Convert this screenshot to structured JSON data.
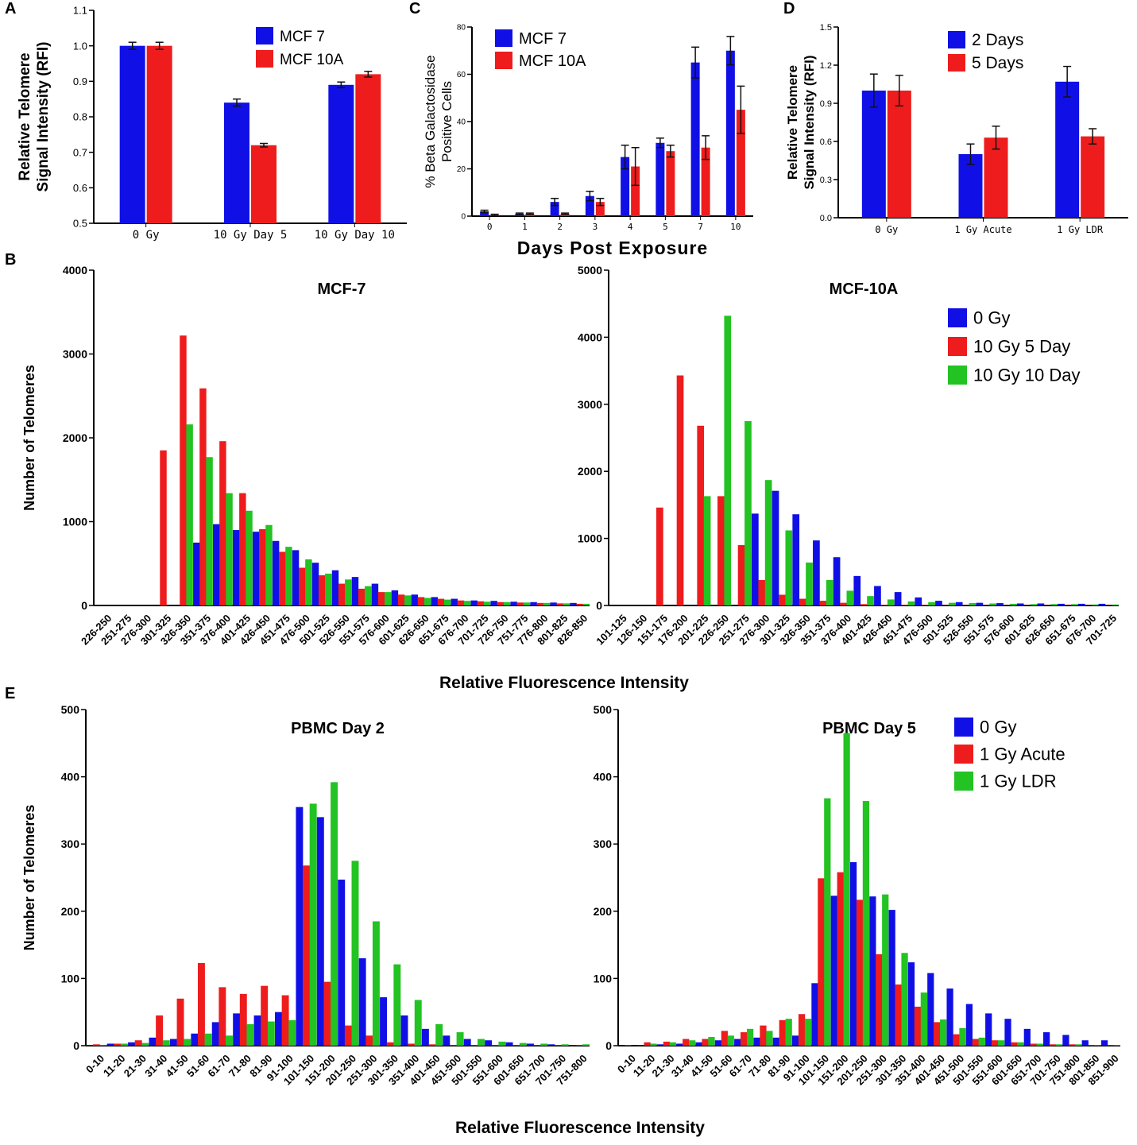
{
  "panel_letters": {
    "A": "A",
    "B": "B",
    "C": "C",
    "D": "D",
    "E": "E"
  },
  "shared_labels": {
    "b_xlabel": "Relative Fluorescence Intensity",
    "e_xlabel": "Relative Fluorescence Intensity"
  },
  "colors": {
    "blue": "#1010e6",
    "red": "#ee1c1c",
    "green": "#22c322"
  },
  "chart_data": [
    {
      "id": "A",
      "type": "bar",
      "title": "",
      "ylabel": "Relative Telomere Signal Intensity (RFI)",
      "xlabel": "",
      "ylim": [
        0.5,
        1.1
      ],
      "yticks": [
        "0.5",
        "0.6",
        "0.7",
        "0.8",
        "0.9",
        "1.0",
        "1.1"
      ],
      "categories": [
        "0 Gy",
        "10 Gy Day 5",
        "10 Gy Day 10"
      ],
      "series": [
        {
          "name": "MCF 7",
          "color": "#1010e6",
          "values": [
            1.0,
            0.84,
            0.89
          ],
          "errors": [
            0.01,
            0.01,
            0.008
          ]
        },
        {
          "name": "MCF 10A",
          "color": "#ee1c1c",
          "values": [
            1.0,
            0.72,
            0.92
          ],
          "errors": [
            0.01,
            0.005,
            0.008
          ]
        }
      ],
      "legend": "top-right"
    },
    {
      "id": "C",
      "type": "bar",
      "title": "",
      "ylabel": "% Beta Galactosidase Positive Cells",
      "xlabel": "Days Post Exposure",
      "ylim": [
        0,
        80
      ],
      "yticks": [
        "0",
        "20",
        "40",
        "60",
        "80"
      ],
      "categories": [
        "0",
        "1",
        "2",
        "3",
        "4",
        "5",
        "7",
        "10"
      ],
      "series": [
        {
          "name": "MCF 7",
          "color": "#1010e6",
          "values": [
            2,
            1,
            6,
            8.5,
            25,
            31,
            65,
            70
          ],
          "errors": [
            0.5,
            0.3,
            1.5,
            2,
            5,
            2,
            6.5,
            6
          ]
        },
        {
          "name": "MCF 10A",
          "color": "#ee1c1c",
          "values": [
            0.5,
            1,
            1,
            6,
            21,
            27.5,
            29,
            45
          ],
          "errors": [
            0.3,
            0.3,
            0.3,
            1.5,
            8,
            2.5,
            5,
            10
          ]
        }
      ],
      "legend": "top-left"
    },
    {
      "id": "D",
      "type": "bar",
      "title": "",
      "ylabel": "Relative Telomere Signal Intensity (RFI)",
      "xlabel": "",
      "ylim": [
        0,
        1.5
      ],
      "yticks": [
        "0.0",
        "0.3",
        "0.6",
        "0.9",
        "1.2",
        "1.5"
      ],
      "categories": [
        "0 Gy",
        "1 Gy Acute",
        "1 Gy LDR"
      ],
      "series": [
        {
          "name": "2 Days",
          "color": "#1010e6",
          "values": [
            1.0,
            0.5,
            1.07
          ],
          "errors": [
            0.13,
            0.08,
            0.12
          ]
        },
        {
          "name": "5 Days",
          "color": "#ee1c1c",
          "values": [
            1.0,
            0.63,
            0.64
          ],
          "errors": [
            0.12,
            0.09,
            0.06
          ]
        }
      ],
      "legend": "top-right"
    },
    {
      "id": "B1",
      "type": "bar",
      "title": "MCF-7",
      "ylabel": "Number of Telomeres",
      "xlabel": "",
      "ylim": [
        0,
        4000
      ],
      "yticks": [
        "0",
        "1000",
        "2000",
        "3000",
        "4000"
      ],
      "categories": [
        "226-250",
        "251-275",
        "276-300",
        "301-325",
        "326-350",
        "351-375",
        "376-400",
        "401-425",
        "426-450",
        "451-475",
        "476-500",
        "501-525",
        "526-550",
        "551-575",
        "576-600",
        "601-625",
        "626-650",
        "651-675",
        "676-700",
        "701-725",
        "726-750",
        "751-775",
        "776-800",
        "801-825",
        "826-850"
      ],
      "series": [
        {
          "name": "0 Gy",
          "color": "#1010e6",
          "values": [
            0,
            0,
            0,
            0,
            0,
            750,
            970,
            900,
            880,
            770,
            660,
            510,
            420,
            340,
            260,
            180,
            130,
            100,
            80,
            60,
            55,
            45,
            40,
            35,
            30
          ]
        },
        {
          "name": "10 Gy 5 Day",
          "color": "#ee1c1c",
          "values": [
            0,
            0,
            0,
            1850,
            3220,
            2590,
            1960,
            1340,
            910,
            640,
            450,
            360,
            260,
            200,
            160,
            130,
            100,
            80,
            60,
            50,
            40,
            35,
            30,
            25,
            20
          ]
        },
        {
          "name": "10 Gy 10 Day",
          "color": "#22c322",
          "values": [
            0,
            0,
            0,
            0,
            2160,
            1770,
            1340,
            1130,
            960,
            700,
            550,
            380,
            310,
            230,
            160,
            120,
            90,
            70,
            55,
            45,
            40,
            35,
            30,
            25,
            20
          ]
        }
      ]
    },
    {
      "id": "B2",
      "type": "bar",
      "title": "MCF-10A",
      "ylabel": "",
      "xlabel": "",
      "ylim": [
        0,
        5000
      ],
      "yticks": [
        "0",
        "1000",
        "2000",
        "3000",
        "4000",
        "5000"
      ],
      "categories": [
        "101-125",
        "126-150",
        "151-175",
        "176-200",
        "201-225",
        "226-250",
        "251-275",
        "276-300",
        "301-325",
        "326-350",
        "351-375",
        "376-400",
        "401-425",
        "426-450",
        "451-475",
        "476-500",
        "501-525",
        "526-550",
        "551-575",
        "576-600",
        "601-625",
        "626-650",
        "651-675",
        "676-700",
        "701-725"
      ],
      "series": [
        {
          "name": "0 Gy",
          "color": "#1010e6",
          "values": [
            0,
            0,
            0,
            0,
            0,
            0,
            0,
            1370,
            1710,
            1360,
            970,
            720,
            440,
            290,
            200,
            120,
            70,
            50,
            40,
            35,
            30,
            30,
            25,
            25,
            25
          ]
        },
        {
          "name": "10 Gy 5 Day",
          "color": "#ee1c1c",
          "values": [
            0,
            0,
            1460,
            3430,
            2680,
            1630,
            900,
            380,
            160,
            100,
            70,
            40,
            20,
            10,
            10,
            10,
            5,
            5,
            5,
            5,
            5,
            5,
            5,
            5,
            5
          ]
        },
        {
          "name": "10 Gy 10 Day",
          "color": "#22c322",
          "values": [
            0,
            0,
            0,
            0,
            1630,
            4320,
            2750,
            1870,
            1120,
            640,
            380,
            220,
            140,
            90,
            60,
            50,
            40,
            35,
            30,
            25,
            20,
            20,
            20,
            15,
            15
          ]
        }
      ],
      "legend": "top-right"
    },
    {
      "id": "E1",
      "type": "bar",
      "title": "PBMC Day 2",
      "ylabel": "Number of Telomeres",
      "xlabel": "",
      "ylim": [
        0,
        500
      ],
      "yticks": [
        "0",
        "100",
        "200",
        "300",
        "400",
        "500"
      ],
      "categories": [
        "0-10",
        "11-20",
        "21-30",
        "31-40",
        "41-50",
        "51-60",
        "61-70",
        "71-80",
        "81-90",
        "91-100",
        "101-150",
        "151-200",
        "201-250",
        "251-300",
        "301-350",
        "351-400",
        "401-450",
        "451-500",
        "501-550",
        "551-600",
        "601-650",
        "651-700",
        "701-750",
        "751-800"
      ],
      "series": [
        {
          "name": "0 Gy",
          "color": "#1010e6",
          "values": [
            1,
            3,
            5,
            12,
            10,
            18,
            35,
            48,
            45,
            50,
            355,
            340,
            247,
            130,
            72,
            45,
            25,
            15,
            10,
            8,
            5,
            3,
            2,
            1
          ]
        },
        {
          "name": "1 Gy Acute",
          "color": "#ee1c1c",
          "values": [
            2,
            3,
            8,
            45,
            70,
            123,
            87,
            77,
            89,
            75,
            268,
            95,
            30,
            15,
            5,
            3,
            2,
            1,
            1,
            1,
            1,
            1,
            1,
            1
          ]
        },
        {
          "name": "1 Gy LDR",
          "color": "#22c322",
          "values": [
            1,
            3,
            4,
            8,
            10,
            18,
            15,
            32,
            36,
            38,
            360,
            392,
            275,
            185,
            121,
            68,
            32,
            20,
            10,
            6,
            4,
            3,
            2,
            2
          ]
        }
      ]
    },
    {
      "id": "E2",
      "type": "bar",
      "title": "PBMC Day 5",
      "ylabel": "",
      "xlabel": "",
      "ylim": [
        0,
        500
      ],
      "yticks": [
        "0",
        "100",
        "200",
        "300",
        "400",
        "500"
      ],
      "categories": [
        "0-10",
        "11-20",
        "21-30",
        "31-40",
        "41-50",
        "51-60",
        "61-70",
        "71-80",
        "81-90",
        "91-100",
        "101-150",
        "151-200",
        "201-250",
        "251-300",
        "301-350",
        "351-400",
        "401-450",
        "451-500",
        "501-550",
        "551-600",
        "601-650",
        "651-700",
        "701-750",
        "751-800",
        "801-850",
        "851-900"
      ],
      "series": [
        {
          "name": "0 Gy",
          "color": "#1010e6",
          "values": [
            0,
            1,
            2,
            3,
            5,
            8,
            10,
            12,
            12,
            15,
            93,
            223,
            273,
            222,
            202,
            124,
            108,
            85,
            62,
            48,
            40,
            25,
            20,
            16,
            8,
            8
          ]
        },
        {
          "name": "1 Gy Acute",
          "color": "#ee1c1c",
          "values": [
            1,
            5,
            6,
            10,
            10,
            22,
            20,
            30,
            38,
            47,
            249,
            258,
            217,
            136,
            91,
            58,
            35,
            17,
            10,
            8,
            5,
            3,
            2,
            2,
            1,
            1
          ]
        },
        {
          "name": "1 Gy LDR",
          "color": "#22c322",
          "values": [
            0,
            3,
            5,
            8,
            13,
            15,
            25,
            22,
            40,
            40,
            368,
            465,
            364,
            225,
            138,
            79,
            39,
            26,
            12,
            8,
            5,
            3,
            2,
            2,
            1,
            1
          ]
        }
      ],
      "legend": "top-right"
    }
  ]
}
